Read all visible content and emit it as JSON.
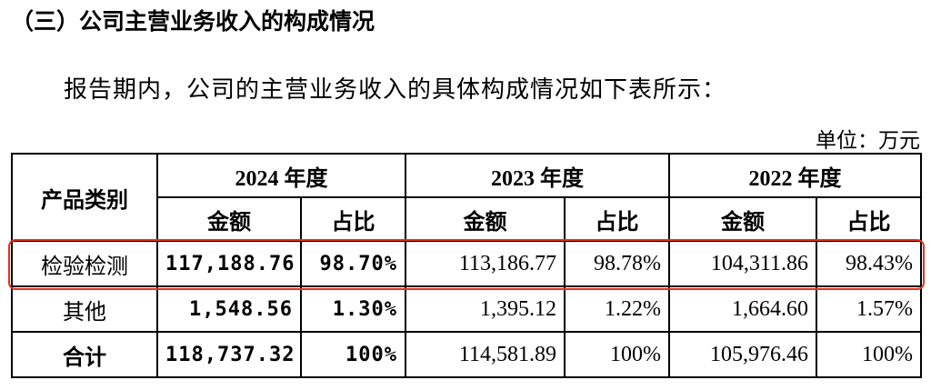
{
  "heading": "（三）公司主营业务收入的构成情况",
  "paragraph": "报告期内，公司的主营业务收入的具体构成情况如下表所示：",
  "unit": "单位：万元",
  "table": {
    "header": {
      "category": "产品类别",
      "years": [
        "2024 年度",
        "2023 年度",
        "2022 年度"
      ],
      "subcolumns": [
        "金额",
        "占比",
        "金额",
        "占比",
        "金额",
        "占比"
      ]
    },
    "rows": [
      [
        "检验检测",
        "117,188.76",
        "98.70%",
        "113,186.77",
        "98.78%",
        "104,311.86",
        "98.43%"
      ],
      [
        "其他",
        "1,548.56",
        "1.30%",
        "1,395.12",
        "1.22%",
        "1,664.60",
        "1.57%"
      ],
      [
        "合计",
        "118,737.32",
        "100%",
        "114,581.89",
        "100%",
        "105,976.46",
        "100%"
      ]
    ]
  }
}
